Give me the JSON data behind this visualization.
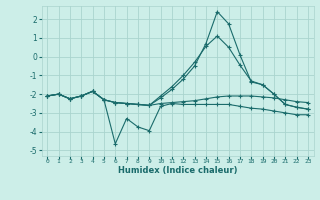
{
  "xlabel": "Humidex (Indice chaleur)",
  "bg_color": "#cceee8",
  "grid_color": "#aad4ce",
  "line_color": "#1a6b6b",
  "xlim": [
    -0.5,
    23.5
  ],
  "ylim": [
    -5.3,
    2.7
  ],
  "yticks": [
    -5,
    -4,
    -3,
    -2,
    -1,
    0,
    1,
    2
  ],
  "xticks": [
    0,
    1,
    2,
    3,
    4,
    5,
    6,
    7,
    8,
    9,
    10,
    11,
    12,
    13,
    14,
    15,
    16,
    17,
    18,
    19,
    20,
    21,
    22,
    23
  ],
  "series": [
    {
      "x": [
        0,
        1,
        2,
        3,
        4,
        5,
        6,
        7,
        8,
        9,
        10,
        11,
        12,
        13,
        14,
        15,
        16,
        17,
        18,
        19,
        20,
        21,
        22,
        23
      ],
      "y": [
        -2.1,
        -2.0,
        -2.25,
        -2.1,
        -1.85,
        -2.3,
        -4.65,
        -3.3,
        -3.75,
        -3.95,
        -2.65,
        -2.5,
        -2.55,
        -2.55,
        -2.55,
        -2.55,
        -2.55,
        -2.65,
        -2.75,
        -2.8,
        -2.9,
        -3.0,
        -3.1,
        -3.1
      ]
    },
    {
      "x": [
        0,
        1,
        2,
        3,
        4,
        5,
        6,
        7,
        8,
        9,
        10,
        11,
        12,
        13,
        14,
        15,
        16,
        17,
        18,
        19,
        20,
        21,
        22,
        23
      ],
      "y": [
        -2.1,
        -2.0,
        -2.25,
        -2.1,
        -1.85,
        -2.3,
        -2.45,
        -2.5,
        -2.55,
        -2.6,
        -2.5,
        -2.45,
        -2.4,
        -2.35,
        -2.25,
        -2.15,
        -2.1,
        -2.1,
        -2.1,
        -2.15,
        -2.2,
        -2.3,
        -2.4,
        -2.45
      ]
    },
    {
      "x": [
        0,
        1,
        2,
        3,
        4,
        5,
        6,
        7,
        8,
        9,
        10,
        11,
        12,
        13,
        14,
        15,
        16,
        17,
        18,
        19,
        20,
        21,
        22,
        23
      ],
      "y": [
        -2.1,
        -2.0,
        -2.25,
        -2.1,
        -1.85,
        -2.3,
        -2.45,
        -2.5,
        -2.55,
        -2.6,
        -2.2,
        -1.75,
        -1.2,
        -0.5,
        0.7,
        2.4,
        1.75,
        0.1,
        -1.35,
        -1.5,
        -2.0,
        -2.55,
        -2.7,
        -2.8
      ]
    },
    {
      "x": [
        0,
        1,
        2,
        3,
        4,
        5,
        6,
        7,
        8,
        9,
        10,
        11,
        12,
        13,
        14,
        15,
        16,
        17,
        18,
        19,
        20,
        21,
        22,
        23
      ],
      "y": [
        -2.1,
        -2.0,
        -2.25,
        -2.1,
        -1.85,
        -2.3,
        -2.45,
        -2.5,
        -2.55,
        -2.6,
        -2.1,
        -1.6,
        -1.0,
        -0.3,
        0.55,
        1.1,
        0.5,
        -0.45,
        -1.3,
        -1.5,
        -2.0,
        -2.55,
        -2.7,
        -2.8
      ]
    }
  ]
}
